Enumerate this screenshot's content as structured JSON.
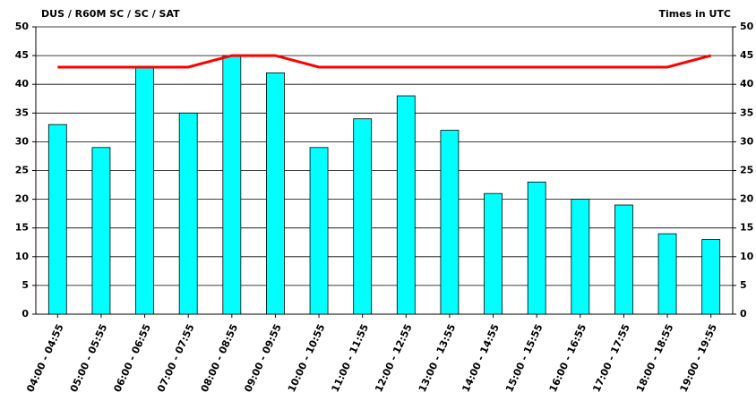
{
  "chart_data": {
    "type": "bar",
    "title": "DUS / R60M SC / SC / SAT",
    "subtitle": "Times in UTC",
    "categories": [
      "04:00 - 04:55",
      "05:00 - 05:55",
      "06:00 - 06:55",
      "07:00 - 07:55",
      "08:00 - 08:55",
      "09:00 - 09:55",
      "10:00 - 10:55",
      "11:00 - 11:55",
      "12:00 - 12:55",
      "13:00 - 13:55",
      "14:00 - 14:55",
      "15:00 - 15:55",
      "16:00 - 16:55",
      "17:00 - 17:55",
      "18:00 - 18:55",
      "19:00 - 19:55"
    ],
    "series": [
      {
        "type": "bar",
        "color": "#00ffff",
        "values": [
          33,
          29,
          43,
          35,
          45,
          42,
          29,
          34,
          38,
          32,
          21,
          23,
          20,
          19,
          14,
          13
        ]
      },
      {
        "type": "line",
        "color": "#ff0000",
        "values": [
          43,
          43,
          43,
          43,
          45,
          45,
          43,
          43,
          43,
          43,
          43,
          43,
          43,
          43,
          43,
          45
        ]
      }
    ],
    "ylim": [
      0,
      50
    ],
    "yticks": [
      0,
      5,
      10,
      15,
      20,
      25,
      30,
      35,
      40,
      45,
      50
    ],
    "y2lim": [
      0,
      50
    ],
    "y2ticks": [
      0,
      5,
      10,
      15,
      20,
      25,
      30,
      35,
      40,
      45,
      50
    ],
    "grid": true
  }
}
